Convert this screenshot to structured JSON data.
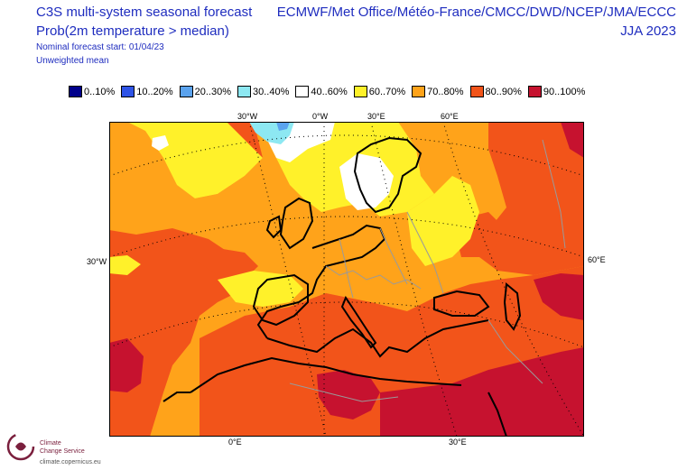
{
  "header": {
    "title": "C3S multi-system seasonal forecast",
    "subtitle": "Prob(2m temperature > median)",
    "start": "Nominal forecast start: 01/04/23",
    "weighting": "Unweighted mean",
    "centres": "ECMWF/Met Office/Météo-France/CMCC/DWD/NCEP/JMA/ECCC",
    "season": "JJA 2023"
  },
  "legend": [
    {
      "label": "0..10%",
      "color": "#00008b"
    },
    {
      "label": "10..20%",
      "color": "#2f54e6"
    },
    {
      "label": "20..30%",
      "color": "#5ba3ee"
    },
    {
      "label": "30..40%",
      "color": "#8de8f2"
    },
    {
      "label": "40..60%",
      "color": "#ffffff"
    },
    {
      "label": "60..70%",
      "color": "#fff12a"
    },
    {
      "label": "70..80%",
      "color": "#ffa31a"
    },
    {
      "label": "80..90%",
      "color": "#f2541a"
    },
    {
      "label": "90..100%",
      "color": "#c6122f"
    }
  ],
  "map_labels": {
    "lon_top": [
      "30°W",
      "0°W",
      "30°E",
      "60°E"
    ],
    "lon_bottom": [
      "0°E",
      "30°E"
    ],
    "lat_left": "30°W",
    "lat_right": "60°E"
  },
  "logo": {
    "line1": "Climate",
    "line2": "Change Service",
    "url": "climate.copernicus.eu"
  }
}
